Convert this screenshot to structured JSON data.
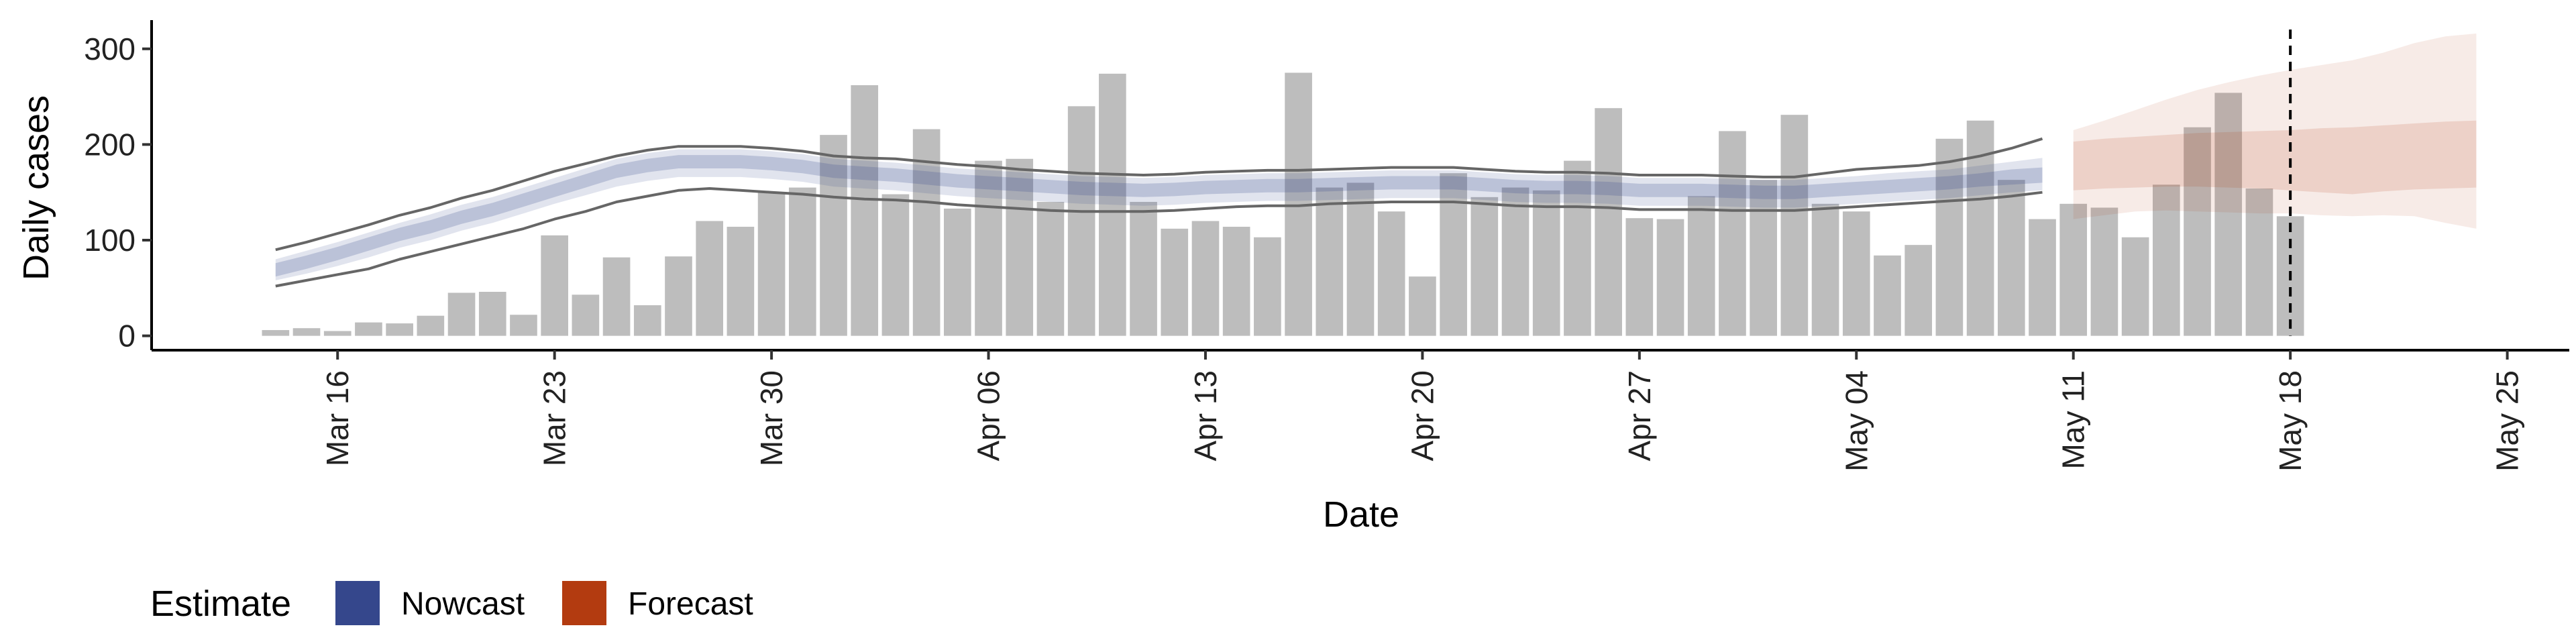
{
  "chart_data": {
    "type": "bar",
    "xlabel": "Date",
    "ylabel": "Daily cases",
    "ylim": [
      -15,
      330
    ],
    "xlim": [
      "2020-03-10",
      "2020-05-27"
    ],
    "y_ticks": [
      0,
      100,
      200,
      300
    ],
    "x_ticks": [
      {
        "date": "2020-03-16",
        "label": "Mar 16"
      },
      {
        "date": "2020-03-23",
        "label": "Mar 23"
      },
      {
        "date": "2020-03-30",
        "label": "Mar 30"
      },
      {
        "date": "2020-04-06",
        "label": "Apr 06"
      },
      {
        "date": "2020-04-13",
        "label": "Apr 13"
      },
      {
        "date": "2020-04-20",
        "label": "Apr 20"
      },
      {
        "date": "2020-04-27",
        "label": "Apr 27"
      },
      {
        "date": "2020-05-04",
        "label": "May 04"
      },
      {
        "date": "2020-05-11",
        "label": "May 11"
      },
      {
        "date": "2020-05-18",
        "label": "May 18"
      },
      {
        "date": "2020-05-25",
        "label": "May 25"
      }
    ],
    "bar_start_date": "2020-03-14",
    "bars": [
      6,
      8,
      5,
      14,
      13,
      21,
      45,
      46,
      22,
      105,
      43,
      82,
      32,
      83,
      120,
      114,
      150,
      155,
      210,
      262,
      148,
      216,
      133,
      183,
      185,
      140,
      240,
      274,
      140,
      112,
      120,
      114,
      103,
      275,
      155,
      160,
      130,
      62,
      170,
      145,
      155,
      152,
      183,
      238,
      123,
      122,
      146,
      214,
      163,
      231,
      138,
      130,
      84,
      95,
      206,
      225,
      163,
      122,
      138,
      134,
      103,
      158,
      218,
      254,
      154,
      125
    ],
    "nowcast": {
      "start_date": "2020-03-14",
      "median": [
        69,
        77,
        86,
        96,
        106,
        114,
        124,
        132,
        142,
        152,
        162,
        172,
        178,
        182,
        182,
        182,
        180,
        177,
        172,
        170,
        168,
        165,
        162,
        160,
        158,
        156,
        154,
        153,
        152,
        153,
        155,
        156,
        157,
        157,
        158,
        159,
        160,
        160,
        160,
        158,
        156,
        155,
        155,
        154,
        152,
        152,
        152,
        151,
        150,
        150,
        152,
        154,
        156,
        158,
        160,
        163,
        166,
        168
      ],
      "inner_low": [
        62,
        70,
        79,
        89,
        99,
        107,
        117,
        125,
        135,
        145,
        155,
        165,
        171,
        175,
        175,
        175,
        173,
        170,
        165,
        163,
        161,
        158,
        155,
        153,
        151,
        149,
        147,
        146,
        145,
        146,
        148,
        149,
        150,
        150,
        151,
        152,
        153,
        153,
        153,
        151,
        149,
        148,
        148,
        147,
        145,
        145,
        145,
        144,
        143,
        143,
        145,
        147,
        149,
        151,
        153,
        156,
        158,
        160
      ],
      "inner_high": [
        76,
        84,
        93,
        103,
        113,
        121,
        131,
        139,
        149,
        159,
        169,
        179,
        185,
        189,
        189,
        189,
        187,
        184,
        179,
        177,
        175,
        172,
        169,
        167,
        165,
        163,
        161,
        160,
        159,
        160,
        162,
        163,
        164,
        164,
        165,
        166,
        167,
        167,
        167,
        165,
        163,
        162,
        162,
        161,
        159,
        159,
        159,
        158,
        157,
        157,
        159,
        161,
        163,
        165,
        167,
        170,
        174,
        176
      ],
      "outer_low": [
        58,
        65,
        73,
        82,
        92,
        100,
        110,
        118,
        128,
        138,
        147,
        156,
        162,
        166,
        166,
        166,
        164,
        161,
        156,
        154,
        152,
        149,
        146,
        144,
        142,
        140,
        138,
        137,
        136,
        137,
        139,
        140,
        141,
        141,
        142,
        143,
        144,
        144,
        144,
        142,
        140,
        139,
        139,
        138,
        136,
        136,
        136,
        135,
        134,
        134,
        136,
        138,
        140,
        142,
        144,
        147,
        150,
        152
      ],
      "outer_high": [
        80,
        89,
        98,
        108,
        118,
        127,
        137,
        145,
        155,
        165,
        175,
        185,
        191,
        195,
        195,
        195,
        193,
        190,
        185,
        183,
        181,
        178,
        175,
        173,
        171,
        169,
        167,
        166,
        165,
        166,
        168,
        169,
        170,
        170,
        171,
        172,
        173,
        173,
        173,
        171,
        169,
        168,
        168,
        167,
        165,
        165,
        165,
        164,
        163,
        163,
        165,
        167,
        170,
        172,
        174,
        178,
        182,
        186
      ],
      "upper_line": [
        90,
        98,
        107,
        116,
        126,
        134,
        144,
        152,
        162,
        172,
        180,
        188,
        194,
        198,
        198,
        198,
        196,
        193,
        188,
        186,
        185,
        182,
        179,
        177,
        174,
        172,
        170,
        169,
        168,
        169,
        171,
        172,
        173,
        173,
        174,
        175,
        176,
        176,
        176,
        174,
        172,
        171,
        171,
        170,
        168,
        168,
        168,
        167,
        166,
        166,
        170,
        174,
        176,
        178,
        182,
        188,
        196,
        206
      ],
      "lower_line": [
        52,
        58,
        64,
        70,
        80,
        88,
        96,
        104,
        112,
        122,
        130,
        140,
        146,
        152,
        154,
        152,
        150,
        148,
        145,
        143,
        142,
        140,
        137,
        135,
        133,
        131,
        130,
        130,
        130,
        131,
        133,
        135,
        136,
        136,
        138,
        139,
        140,
        140,
        140,
        138,
        136,
        135,
        135,
        134,
        132,
        132,
        132,
        131,
        131,
        131,
        133,
        135,
        137,
        139,
        141,
        143,
        146,
        150
      ]
    },
    "forecast": {
      "start_date": "2020-05-11",
      "median": [
        180,
        182,
        184,
        185,
        186,
        186,
        185,
        184,
        183,
        183,
        183,
        183,
        183,
        183
      ],
      "inner_low": [
        152,
        154,
        155,
        156,
        156,
        155,
        154,
        152,
        150,
        148,
        151,
        153,
        154,
        155
      ],
      "inner_high": [
        203,
        206,
        208,
        210,
        212,
        213,
        214,
        215,
        217,
        218,
        220,
        222,
        224,
        225
      ],
      "outer_low": [
        122,
        126,
        130,
        131,
        130,
        129,
        128,
        128,
        126,
        125,
        126,
        125,
        118,
        112
      ],
      "outer_high": [
        215,
        225,
        236,
        247,
        257,
        265,
        272,
        278,
        283,
        288,
        296,
        306,
        313,
        316
      ]
    },
    "cutoff_date": "2020-05-18",
    "legend": {
      "title": "Estimate",
      "position": "bottom-left",
      "items": [
        {
          "label": "Nowcast",
          "color": "#35478c"
        },
        {
          "label": "Forecast",
          "color": "#b33b10"
        }
      ]
    },
    "colors": {
      "bars": "#bdbdbd",
      "nowcast": "#35478c",
      "forecast": "#b33b10",
      "lines": "#666666",
      "cutoff": "#000000"
    }
  }
}
